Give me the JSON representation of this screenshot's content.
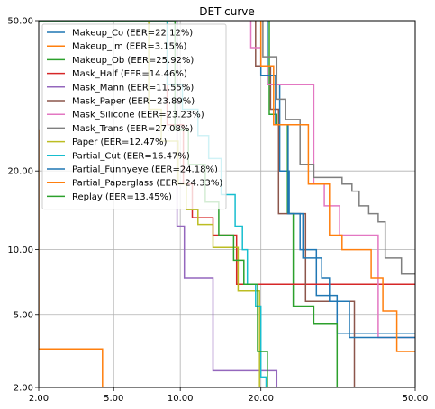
{
  "chart_data": {
    "type": "line",
    "title": "DET curve",
    "xlabel": "",
    "ylabel": "",
    "x_scale": "probit",
    "y_scale": "probit",
    "xlim": [
      2.0,
      50.0
    ],
    "ylim": [
      2.0,
      50.0
    ],
    "x_ticks": [
      2.0,
      5.0,
      10.0,
      20.0,
      50.0
    ],
    "x_tick_labels": [
      "2.00",
      "5.00",
      "10.00",
      "20.00",
      "50.00"
    ],
    "y_ticks": [
      2.0,
      5.0,
      10.0,
      20.0,
      50.0
    ],
    "y_tick_labels": [
      "2.00",
      "5.00",
      "10.00",
      "20.00",
      "50.00"
    ],
    "grid": true,
    "legend_position": "upper-left",
    "series": [
      {
        "name": "Makeup_Co (EER=22.12%)",
        "color": "#1f77b4",
        "points": [
          [
            21.0,
            50
          ],
          [
            21.0,
            36
          ],
          [
            23.0,
            36
          ],
          [
            23.0,
            20
          ],
          [
            24.6,
            20
          ],
          [
            24.6,
            14
          ],
          [
            26.5,
            14
          ],
          [
            26.5,
            10
          ],
          [
            29.5,
            10
          ],
          [
            29.5,
            6.2
          ],
          [
            33.5,
            6.2
          ],
          [
            33.5,
            4.0
          ],
          [
            50,
            4.0
          ]
        ]
      },
      {
        "name": "Makeup_Im (EER=3.15%)",
        "color": "#ff7f0e",
        "points": [
          [
            2.0,
            27
          ],
          [
            2.0,
            3.3
          ],
          [
            4.4,
            3.3
          ],
          [
            4.4,
            2.0
          ]
        ]
      },
      {
        "name": "Makeup_Ob (EER=25.92%)",
        "color": "#2ca02c",
        "points": [
          [
            21.3,
            50
          ],
          [
            21.3,
            30
          ],
          [
            22.5,
            30
          ],
          [
            22.5,
            28
          ],
          [
            24.3,
            28
          ],
          [
            24.3,
            14
          ],
          [
            25.3,
            14
          ],
          [
            25.3,
            5.5
          ],
          [
            29.0,
            5.5
          ],
          [
            29.0,
            4.5
          ],
          [
            33.5,
            4.5
          ],
          [
            33.5,
            2.0
          ]
        ]
      },
      {
        "name": "Mask_Half (EER=14.46%)",
        "color": "#d62728",
        "points": [
          [
            2.0,
            50
          ],
          [
            8.8,
            50
          ],
          [
            8.8,
            28
          ],
          [
            10.3,
            28
          ],
          [
            10.3,
            18
          ],
          [
            11.2,
            18
          ],
          [
            11.2,
            13.5
          ],
          [
            13.5,
            13.5
          ],
          [
            13.5,
            11.5
          ],
          [
            16.5,
            11.5
          ],
          [
            16.5,
            7.0
          ],
          [
            50,
            7.0
          ]
        ]
      },
      {
        "name": "Mask_Mann (EER=11.55%)",
        "color": "#9467bd",
        "points": [
          [
            2.0,
            50
          ],
          [
            9.7,
            50
          ],
          [
            9.7,
            12.5
          ],
          [
            10.4,
            12.5
          ],
          [
            10.4,
            7.5
          ],
          [
            13.5,
            7.5
          ],
          [
            13.5,
            2.5
          ],
          [
            22.5,
            2.5
          ],
          [
            22.5,
            2.0
          ]
        ]
      },
      {
        "name": "Mask_Paper (EER=23.89%)",
        "color": "#8c564b",
        "points": [
          [
            19.2,
            50
          ],
          [
            19.2,
            40
          ],
          [
            21.5,
            40
          ],
          [
            21.5,
            31
          ],
          [
            22.8,
            31
          ],
          [
            22.8,
            14
          ],
          [
            27.5,
            14
          ],
          [
            27.5,
            5.8
          ],
          [
            37.0,
            5.8
          ],
          [
            37.0,
            2.0
          ]
        ]
      },
      {
        "name": "Mask_Silicone (EER=23.23%)",
        "color": "#e377c2",
        "points": [
          [
            18.5,
            50
          ],
          [
            18.5,
            44
          ],
          [
            20.0,
            44
          ],
          [
            20.0,
            40
          ],
          [
            21.0,
            40
          ],
          [
            21.0,
            36
          ],
          [
            29.0,
            36
          ],
          [
            29.0,
            18
          ],
          [
            31.0,
            18
          ],
          [
            31.0,
            15
          ],
          [
            34.0,
            15
          ],
          [
            34.0,
            11.5
          ],
          [
            42.0,
            11.5
          ],
          [
            42.0,
            3.8
          ],
          [
            50,
            3.8
          ]
        ]
      },
      {
        "name": "Mask_Trans (EER=27.08%)",
        "color": "#7f7f7f",
        "points": [
          [
            20.3,
            50
          ],
          [
            20.3,
            42
          ],
          [
            22.5,
            42
          ],
          [
            22.5,
            33
          ],
          [
            24.0,
            33
          ],
          [
            24.0,
            29
          ],
          [
            26.5,
            29
          ],
          [
            26.5,
            21
          ],
          [
            29.0,
            21
          ],
          [
            29.0,
            19
          ],
          [
            34.5,
            19
          ],
          [
            34.5,
            18
          ],
          [
            36.5,
            18
          ],
          [
            36.5,
            17
          ],
          [
            38.0,
            17
          ],
          [
            38.0,
            15
          ],
          [
            40.0,
            15
          ],
          [
            40.0,
            14
          ],
          [
            42.0,
            14
          ],
          [
            42.0,
            13
          ],
          [
            43.5,
            13
          ],
          [
            43.5,
            9.2
          ],
          [
            47.0,
            9.2
          ],
          [
            47.0,
            7.8
          ],
          [
            50,
            7.8
          ]
        ]
      },
      {
        "name": "Paper (EER=12.47%)",
        "color": "#bcbd22",
        "points": [
          [
            2.0,
            50
          ],
          [
            7.3,
            50
          ],
          [
            7.3,
            31
          ],
          [
            8.3,
            31
          ],
          [
            8.3,
            25
          ],
          [
            9.8,
            25
          ],
          [
            9.8,
            18
          ],
          [
            10.6,
            18
          ],
          [
            10.6,
            14.5
          ],
          [
            11.8,
            14.5
          ],
          [
            11.8,
            12.7
          ],
          [
            13.5,
            12.7
          ],
          [
            13.5,
            10.2
          ],
          [
            16.7,
            10.2
          ],
          [
            16.7,
            6.5
          ],
          [
            19.8,
            6.5
          ],
          [
            19.8,
            2.0
          ]
        ]
      },
      {
        "name": "Partial_Cut (EER=16.47%)",
        "color": "#17becf",
        "points": [
          [
            2.0,
            50
          ],
          [
            8.8,
            50
          ],
          [
            8.8,
            36
          ],
          [
            10.2,
            36
          ],
          [
            10.2,
            31
          ],
          [
            11.8,
            31
          ],
          [
            11.8,
            26
          ],
          [
            13.0,
            26
          ],
          [
            13.0,
            22
          ],
          [
            14.5,
            22
          ],
          [
            14.5,
            16.5
          ],
          [
            16.3,
            16.5
          ],
          [
            16.3,
            12.5
          ],
          [
            17.3,
            12.5
          ],
          [
            17.3,
            10
          ],
          [
            18.0,
            10
          ],
          [
            18.0,
            7.0
          ],
          [
            19.2,
            7.0
          ],
          [
            19.2,
            5.5
          ],
          [
            20.0,
            5.5
          ],
          [
            20.0,
            2.3
          ],
          [
            20.8,
            2.3
          ],
          [
            20.8,
            2.0
          ]
        ]
      },
      {
        "name": "Partial_Funnyeye (EER=24.18%)",
        "color": "#1f77b4",
        "points": [
          [
            20.0,
            50
          ],
          [
            20.0,
            38
          ],
          [
            22.3,
            38
          ],
          [
            22.3,
            28
          ],
          [
            24.4,
            28
          ],
          [
            24.4,
            14
          ],
          [
            27.0,
            14
          ],
          [
            27.0,
            9.2
          ],
          [
            30.5,
            9.2
          ],
          [
            30.5,
            7.5
          ],
          [
            32.0,
            7.5
          ],
          [
            32.0,
            5.8
          ],
          [
            36.0,
            5.8
          ],
          [
            36.0,
            3.8
          ],
          [
            50,
            3.8
          ]
        ]
      },
      {
        "name": "Partial_Paperglass (EER=24.33%)",
        "color": "#ff7f0e",
        "points": [
          [
            20.0,
            50
          ],
          [
            20.0,
            40
          ],
          [
            22.0,
            40
          ],
          [
            22.0,
            28
          ],
          [
            28.0,
            28
          ],
          [
            28.0,
            18
          ],
          [
            32.0,
            18
          ],
          [
            32.0,
            11.5
          ],
          [
            34.5,
            11.5
          ],
          [
            34.5,
            10
          ],
          [
            40.5,
            10
          ],
          [
            40.5,
            7.5
          ],
          [
            43.0,
            7.5
          ],
          [
            43.0,
            5.2
          ],
          [
            46.0,
            5.2
          ],
          [
            46.0,
            3.2
          ],
          [
            50,
            3.2
          ]
        ]
      },
      {
        "name": "Replay (EER=13.45%)",
        "color": "#2ca02c",
        "points": [
          [
            2.0,
            50
          ],
          [
            9.5,
            50
          ],
          [
            9.5,
            27
          ],
          [
            10.8,
            27
          ],
          [
            10.8,
            21
          ],
          [
            12.6,
            21
          ],
          [
            12.6,
            15.5
          ],
          [
            14.2,
            15.5
          ],
          [
            14.2,
            11.5
          ],
          [
            16.1,
            11.5
          ],
          [
            16.1,
            9.0
          ],
          [
            17.5,
            9.0
          ],
          [
            17.5,
            7.0
          ],
          [
            19.5,
            7.0
          ],
          [
            19.5,
            3.2
          ],
          [
            21.0,
            3.2
          ],
          [
            21.0,
            2.0
          ]
        ]
      }
    ]
  }
}
